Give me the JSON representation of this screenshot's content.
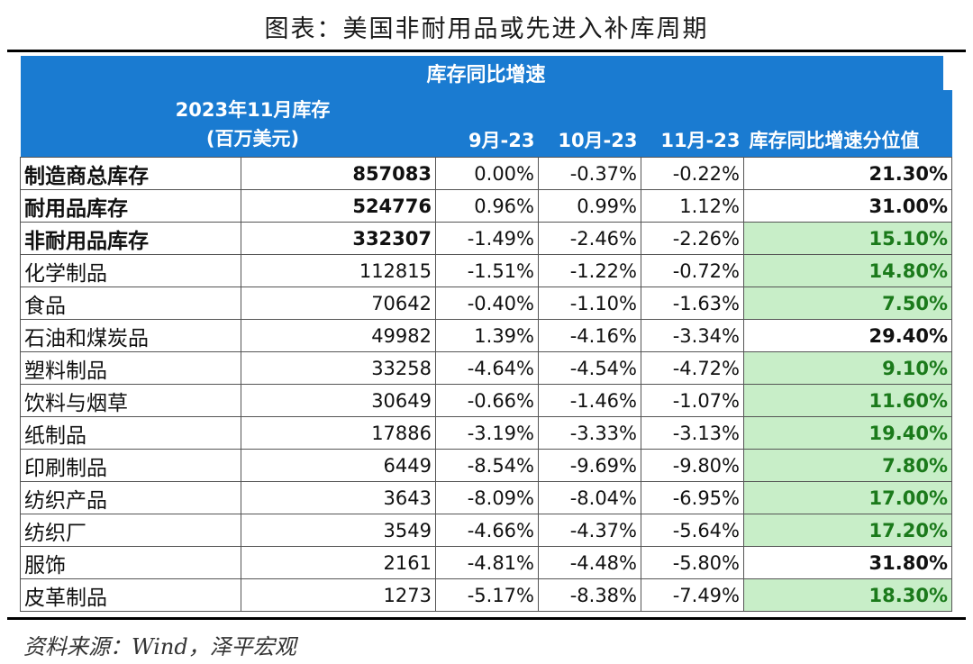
{
  "title": "图表：美国非耐用品或先进入补库周期",
  "header": {
    "group_label": "库存同比增速",
    "inventory_label_line1": "2023年11月库存",
    "inventory_label_line2": "(百万美元)",
    "col_sep": "9月-23",
    "col_oct": "10月-23",
    "col_nov": "11月-23",
    "col_pct": "库存同比增速分位值"
  },
  "rows": [
    {
      "name": "制造商总库存",
      "inv": "857083",
      "sep": "0.00%",
      "oct": "-0.37%",
      "nov": "-0.22%",
      "pct": "21.30%"
    },
    {
      "name": "耐用品库存",
      "inv": "524776",
      "sep": "0.96%",
      "oct": "0.99%",
      "nov": "1.12%",
      "pct": "31.00%"
    },
    {
      "name": "非耐用品库存",
      "inv": "332307",
      "sep": "-1.49%",
      "oct": "-2.46%",
      "nov": "-2.26%",
      "pct": "15.10%"
    },
    {
      "name": "化学制品",
      "inv": "112815",
      "sep": "-1.51%",
      "oct": "-1.22%",
      "nov": "-0.72%",
      "pct": "14.80%"
    },
    {
      "name": "食品",
      "inv": "70642",
      "sep": "-0.40%",
      "oct": "-1.10%",
      "nov": "-1.63%",
      "pct": "7.50%"
    },
    {
      "name": "石油和煤炭品",
      "inv": "49982",
      "sep": "1.39%",
      "oct": "-4.16%",
      "nov": "-3.34%",
      "pct": "29.40%"
    },
    {
      "name": "塑料制品",
      "inv": "33258",
      "sep": "-4.64%",
      "oct": "-4.54%",
      "nov": "-4.72%",
      "pct": "9.10%"
    },
    {
      "name": "饮料与烟草",
      "inv": "30649",
      "sep": "-0.66%",
      "oct": "-1.46%",
      "nov": "-1.07%",
      "pct": "11.60%"
    },
    {
      "name": "纸制品",
      "inv": "17886",
      "sep": "-3.19%",
      "oct": "-3.33%",
      "nov": "-3.13%",
      "pct": "19.40%"
    },
    {
      "name": "印刷制品",
      "inv": "6449",
      "sep": "-8.54%",
      "oct": "-9.69%",
      "nov": "-9.80%",
      "pct": "7.80%"
    },
    {
      "name": "纺织产品",
      "inv": "3643",
      "sep": "-8.09%",
      "oct": "-8.04%",
      "nov": "-6.95%",
      "pct": "17.00%"
    },
    {
      "name": "纺织厂",
      "inv": "3549",
      "sep": "-4.66%",
      "oct": "-4.37%",
      "nov": "-5.64%",
      "pct": "17.20%"
    },
    {
      "name": "服饰",
      "inv": "2161",
      "sep": "-4.81%",
      "oct": "-4.48%",
      "nov": "-5.80%",
      "pct": "31.80%"
    },
    {
      "name": "皮革制品",
      "inv": "1273",
      "sep": "-5.17%",
      "oct": "-8.38%",
      "nov": "-7.49%",
      "pct": "18.30%"
    }
  ],
  "colors": {
    "header_bg": "#1a7bd1",
    "highlight_bg": "#c8eec8",
    "highlight_text": "#1b7a1b"
  },
  "source": "资料来源：Wind，泽平宏观"
}
